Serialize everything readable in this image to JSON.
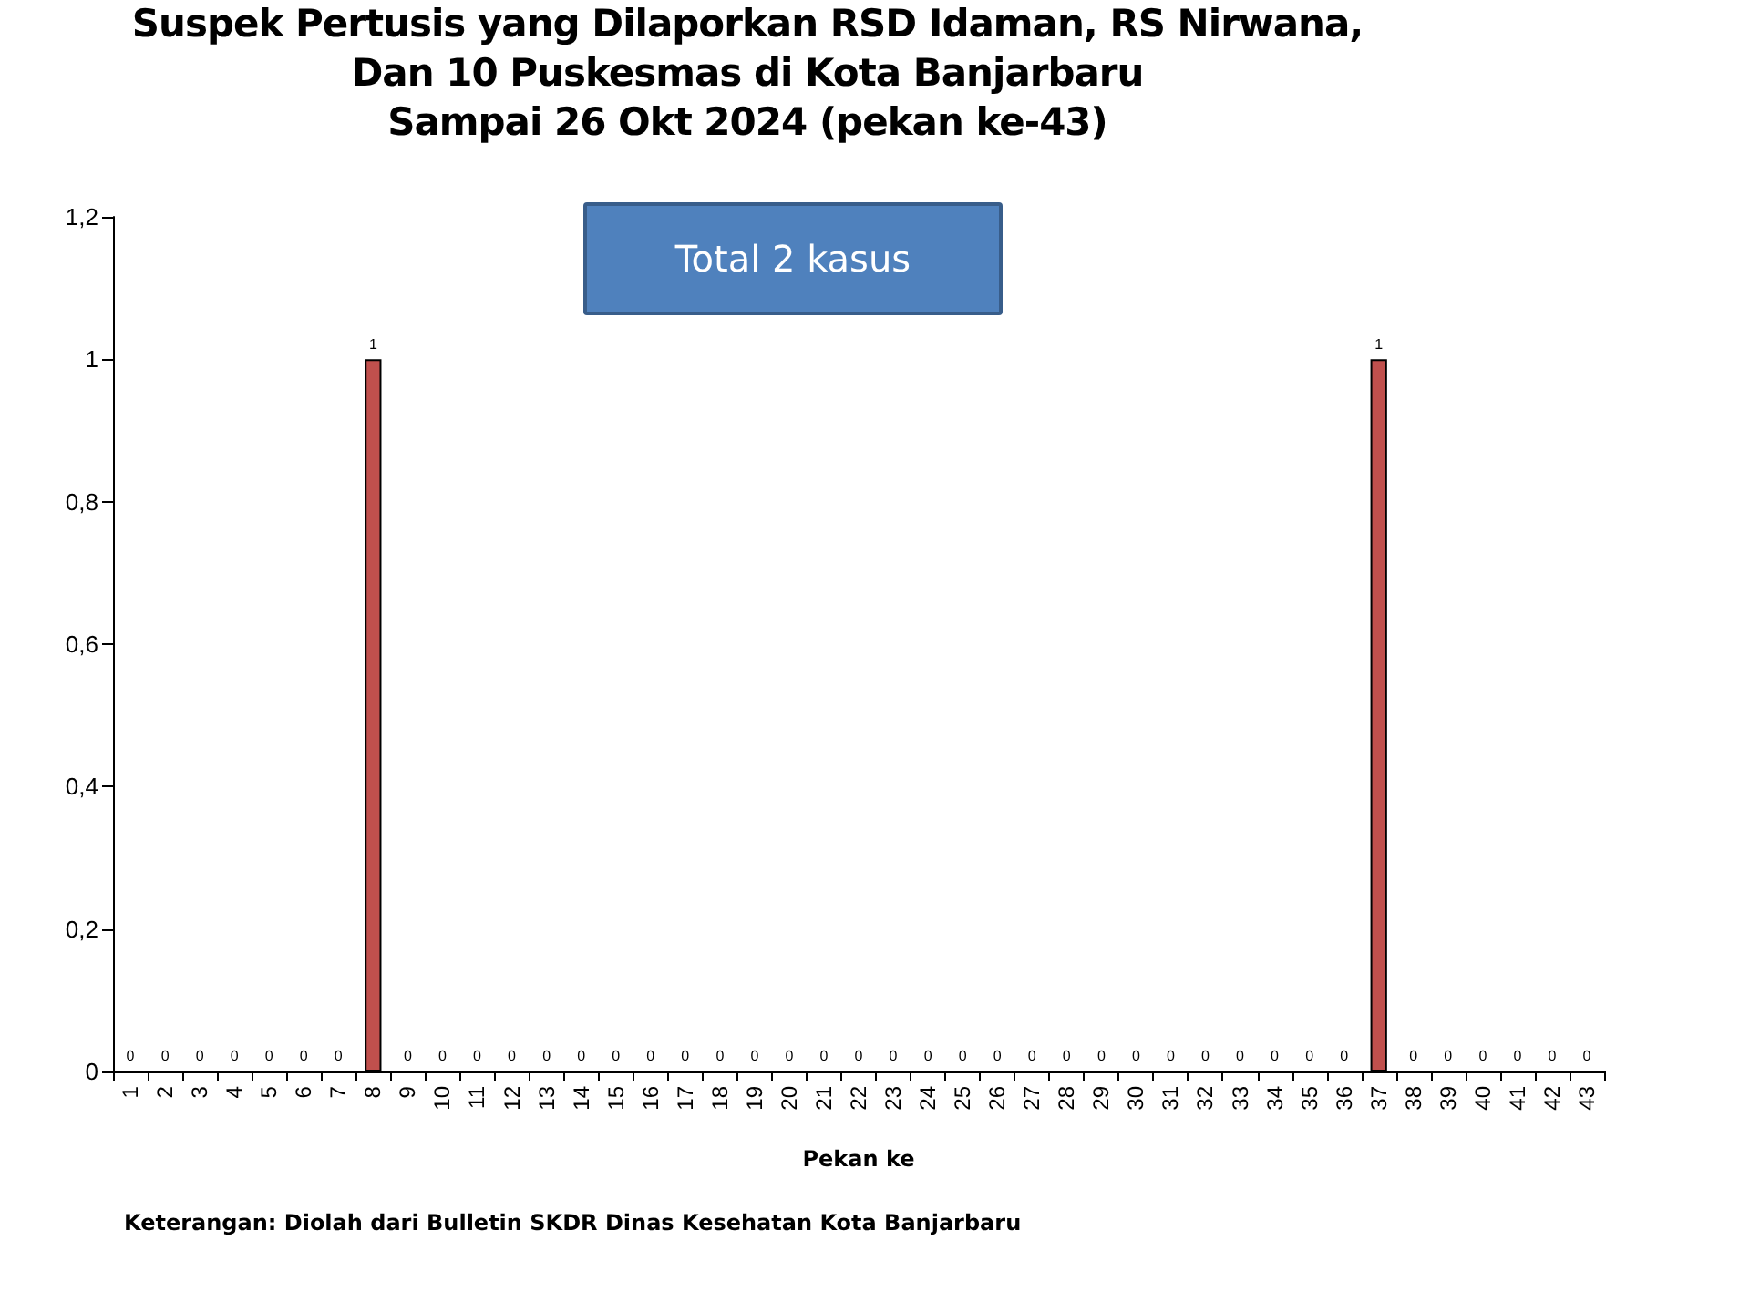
{
  "chart_data": {
    "type": "bar",
    "title": "Suspek Pertusis yang Dilaporkan RSD Idaman, RS Nirwana,\nDan 10 Puskesmas di Kota Banjarbaru\nSampai 26 Okt 2024 (pekan ke-43)",
    "xlabel": "Pekan ke",
    "categories": [
      "1",
      "2",
      "3",
      "4",
      "5",
      "6",
      "7",
      "8",
      "9",
      "10",
      "11",
      "12",
      "13",
      "14",
      "15",
      "16",
      "17",
      "18",
      "19",
      "20",
      "21",
      "22",
      "23",
      "24",
      "25",
      "26",
      "27",
      "28",
      "29",
      "30",
      "31",
      "32",
      "33",
      "34",
      "35",
      "36",
      "37",
      "38",
      "39",
      "40",
      "41",
      "42",
      "43"
    ],
    "values": [
      0,
      0,
      0,
      0,
      0,
      0,
      0,
      1,
      0,
      0,
      0,
      0,
      0,
      0,
      0,
      0,
      0,
      0,
      0,
      0,
      0,
      0,
      0,
      0,
      0,
      0,
      0,
      0,
      0,
      0,
      0,
      0,
      0,
      0,
      0,
      0,
      1,
      0,
      0,
      0,
      0,
      0,
      0
    ],
    "color": "#c0504d",
    "data_labels": true,
    "grid": false,
    "ylim": [
      0,
      1.2
    ],
    "yticks": [
      0,
      {
        "value": 0.2,
        "label": "0,2"
      },
      {
        "value": 0.4,
        "label": "0,4"
      },
      {
        "value": 0.6,
        "label": "0,6"
      },
      {
        "value": 0.8,
        "label": "0,8"
      },
      1,
      {
        "value": 1.2,
        "label": "1,2"
      }
    ],
    "annotations": [
      "Total 2 kasus",
      "Keterangan: Diolah dari Bulletin SKDR Dinas Kesehatan Kota Banjarbaru"
    ]
  }
}
